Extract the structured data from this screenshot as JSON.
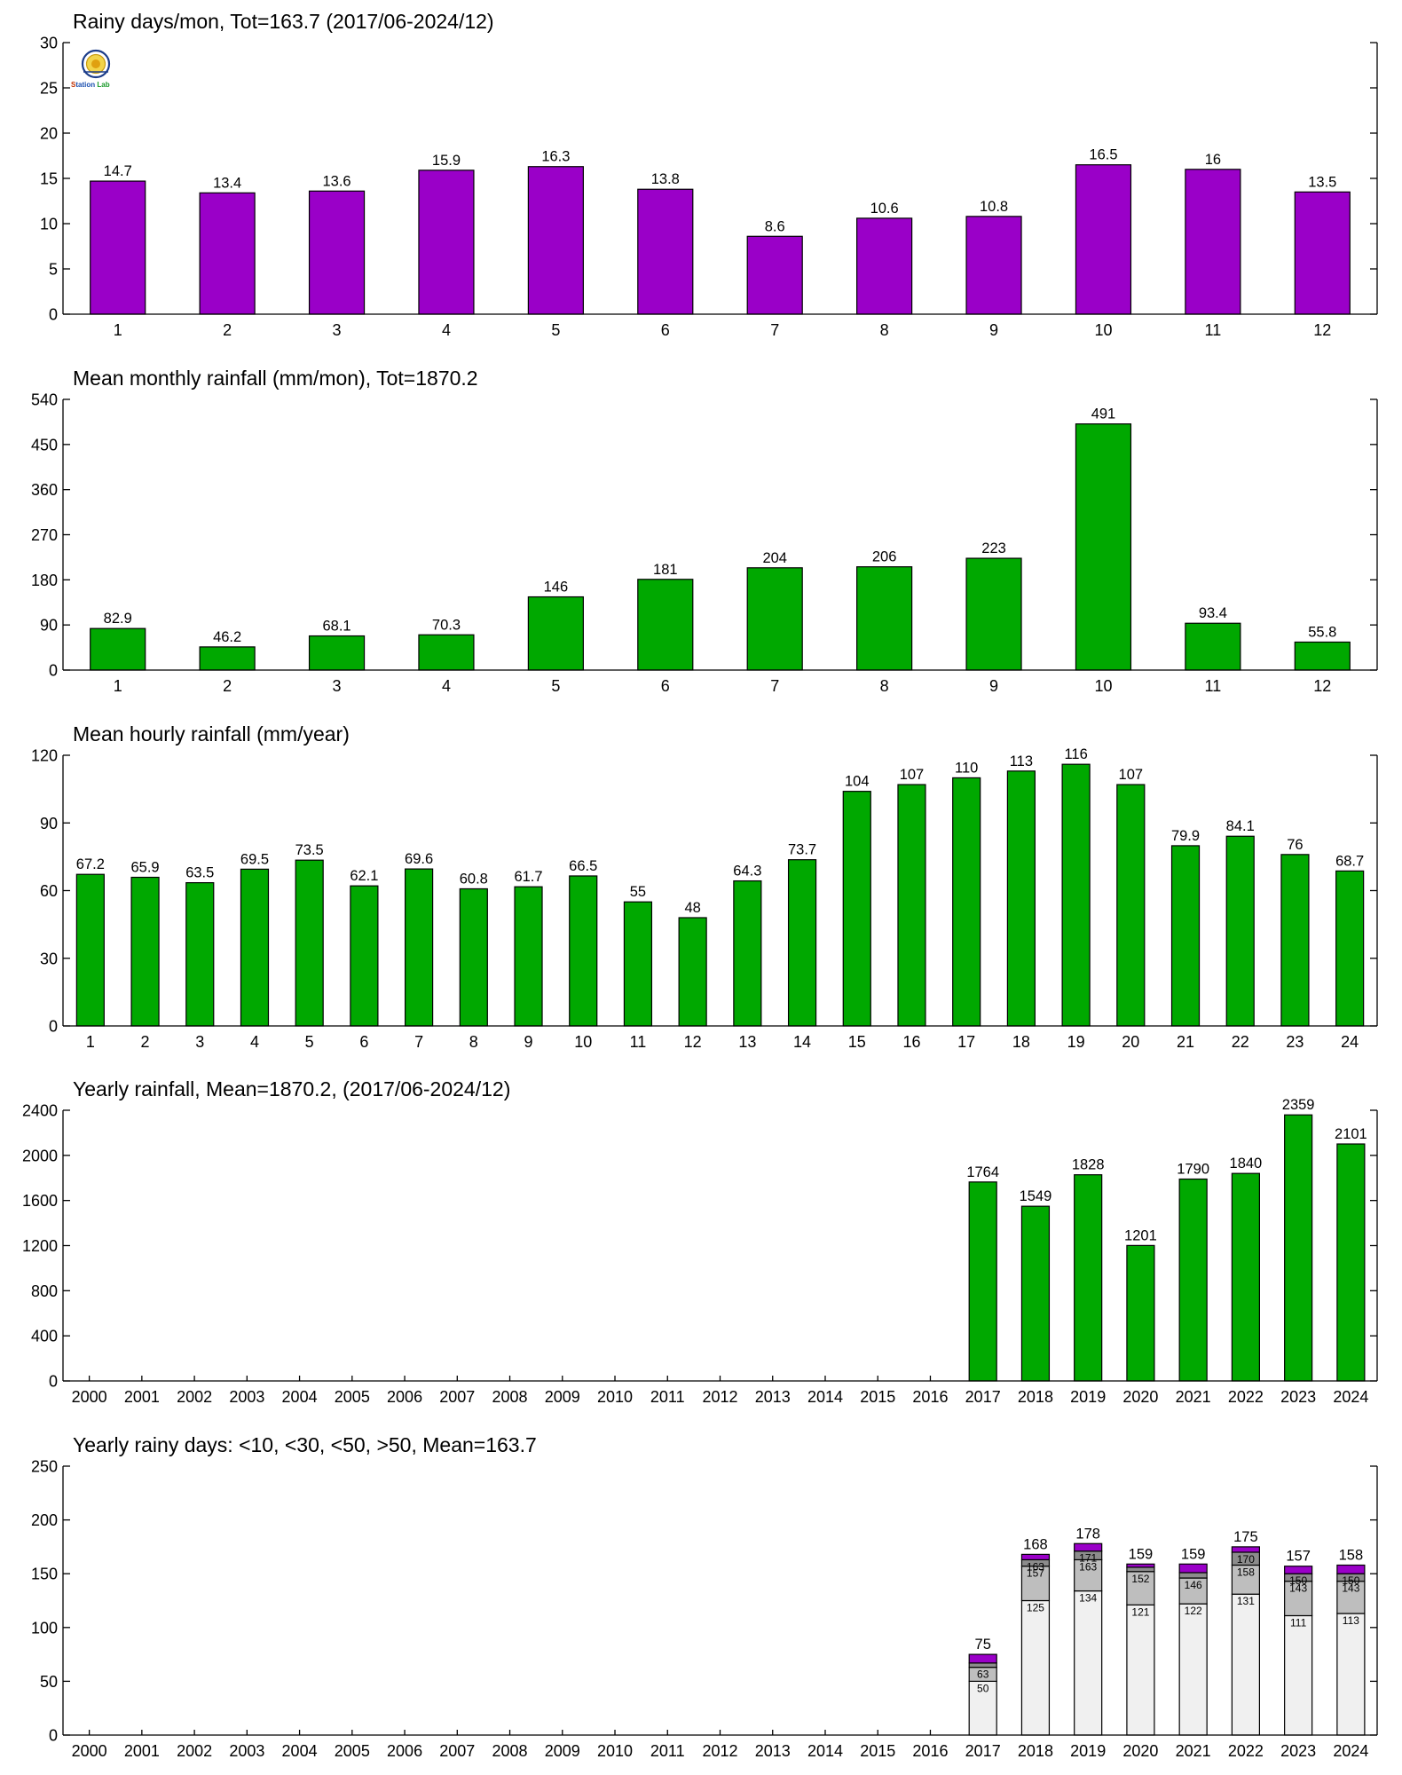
{
  "colors": {
    "purple": "#9a00c8",
    "green": "#00a800",
    "bucket_colors": [
      "#f0f0f0",
      "#bebebe",
      "#8c8c8c",
      "#9a00c8"
    ]
  },
  "logo": {
    "icon": "weather-station-logo",
    "text_parts": [
      "S",
      "tation",
      "Lab"
    ]
  },
  "chart_data": [
    {
      "type": "bar",
      "title": "Rainy days/mon, Tot=163.7 (2017/06-2024/12)",
      "categories": [
        "1",
        "2",
        "3",
        "4",
        "5",
        "6",
        "7",
        "8",
        "9",
        "10",
        "11",
        "12"
      ],
      "values": [
        14.7,
        13.4,
        13.6,
        15.9,
        16.3,
        13.8,
        8.6,
        10.6,
        10.8,
        16.5,
        16,
        13.5
      ],
      "labels": [
        "14.7",
        "13.4",
        "13.6",
        "15.9",
        "16.3",
        "13.8",
        "8.6",
        "10.6",
        "10.8",
        "16.5",
        "16",
        "13.5"
      ],
      "ylim": [
        0,
        30
      ],
      "yticks": [
        "0",
        "5",
        "10",
        "15",
        "20",
        "25",
        "30"
      ],
      "color": "#9a00c8",
      "grid": false
    },
    {
      "type": "bar",
      "title": "Mean monthly rainfall (mm/mon), Tot=1870.2",
      "categories": [
        "1",
        "2",
        "3",
        "4",
        "5",
        "6",
        "7",
        "8",
        "9",
        "10",
        "11",
        "12"
      ],
      "values": [
        82.9,
        46.2,
        68.1,
        70.3,
        146,
        181,
        204,
        206,
        223,
        491,
        93.4,
        55.8
      ],
      "labels": [
        "82.9",
        "46.2",
        "68.1",
        "70.3",
        "146",
        "181",
        "204",
        "206",
        "223",
        "491",
        "93.4",
        "55.8"
      ],
      "ylim": [
        0,
        540
      ],
      "yticks": [
        "0",
        "90",
        "180",
        "270",
        "360",
        "450",
        "540"
      ],
      "color": "#00a800",
      "grid": false
    },
    {
      "type": "bar",
      "title": "Mean hourly rainfall (mm/year)",
      "categories": [
        "1",
        "2",
        "3",
        "4",
        "5",
        "6",
        "7",
        "8",
        "9",
        "10",
        "11",
        "12",
        "13",
        "14",
        "15",
        "16",
        "17",
        "18",
        "19",
        "20",
        "21",
        "22",
        "23",
        "24"
      ],
      "values": [
        67.2,
        65.9,
        63.5,
        69.5,
        73.5,
        62.1,
        69.6,
        60.8,
        61.7,
        66.5,
        55,
        48,
        64.3,
        73.7,
        104,
        107,
        110,
        113,
        116,
        107,
        79.9,
        84.1,
        76,
        68.7
      ],
      "labels": [
        "67.2",
        "65.9",
        "63.5",
        "69.5",
        "73.5",
        "62.1",
        "69.6",
        "60.8",
        "61.7",
        "66.5",
        "55",
        "48",
        "64.3",
        "73.7",
        "104",
        "107",
        "110",
        "113",
        "116",
        "107",
        "79.9",
        "84.1",
        "76",
        "68.7"
      ],
      "ylim": [
        0,
        120
      ],
      "yticks": [
        "0",
        "30",
        "60",
        "90",
        "120"
      ],
      "color": "#00a800",
      "grid": false
    },
    {
      "type": "bar",
      "title": "Yearly rainfall, Mean=1870.2, (2017/06-2024/12)",
      "categories": [
        "2000",
        "2001",
        "2002",
        "2003",
        "2004",
        "2005",
        "2006",
        "2007",
        "2008",
        "2009",
        "2010",
        "2011",
        "2012",
        "2013",
        "2014",
        "2015",
        "2016",
        "2017",
        "2018",
        "2019",
        "2020",
        "2021",
        "2022",
        "2023",
        "2024"
      ],
      "values": [
        null,
        null,
        null,
        null,
        null,
        null,
        null,
        null,
        null,
        null,
        null,
        null,
        null,
        null,
        null,
        null,
        null,
        1764,
        1549,
        1828,
        1201,
        1790,
        1840,
        2359,
        2101
      ],
      "labels": [
        "",
        "",
        "",
        "",
        "",
        "",
        "",
        "",
        "",
        "",
        "",
        "",
        "",
        "",
        "",
        "",
        "",
        "1764",
        "1549",
        "1828",
        "1201",
        "1790",
        "1840",
        "2359",
        "2101"
      ],
      "ylim": [
        0,
        2400
      ],
      "yticks": [
        "0",
        "400",
        "800",
        "1200",
        "1600",
        "2000",
        "2400"
      ],
      "color": "#00a800",
      "grid": false
    },
    {
      "type": "stacked-bar",
      "title": "Yearly rainy days: <10, <30, <50, >50, Mean=163.7",
      "categories": [
        "2000",
        "2001",
        "2002",
        "2003",
        "2004",
        "2005",
        "2006",
        "2007",
        "2008",
        "2009",
        "2010",
        "2011",
        "2012",
        "2013",
        "2014",
        "2015",
        "2016",
        "2017",
        "2018",
        "2019",
        "2020",
        "2021",
        "2022",
        "2023",
        "2024"
      ],
      "cumulative": [
        null,
        null,
        null,
        null,
        null,
        null,
        null,
        null,
        null,
        null,
        null,
        null,
        null,
        null,
        null,
        null,
        null,
        [
          50,
          63,
          67,
          75
        ],
        [
          125,
          157,
          163,
          168
        ],
        [
          134,
          163,
          171,
          178
        ],
        [
          121,
          152,
          156,
          159
        ],
        [
          122,
          146,
          151,
          159
        ],
        [
          131,
          158,
          170,
          175
        ],
        [
          111,
          143,
          150,
          157
        ],
        [
          113,
          143,
          150,
          158
        ]
      ],
      "inner_labels": [
        null,
        null,
        null,
        null,
        null,
        null,
        null,
        null,
        null,
        null,
        null,
        null,
        null,
        null,
        null,
        null,
        null,
        [
          "50",
          "63"
        ],
        [
          "125",
          "157",
          "163"
        ],
        [
          "134",
          "163",
          "171"
        ],
        [
          "121",
          "152"
        ],
        [
          "122",
          "146"
        ],
        [
          "131",
          "158",
          "170"
        ],
        [
          "111",
          "143",
          "150"
        ],
        [
          "113",
          "143",
          "150"
        ]
      ],
      "totals": [
        "",
        "",
        "",
        "",
        "",
        "",
        "",
        "",
        "",
        "",
        "",
        "",
        "",
        "",
        "",
        "",
        "",
        "75",
        "168",
        "178",
        "159",
        "159",
        "175",
        "157",
        "158"
      ],
      "ylim": [
        0,
        250
      ],
      "yticks": [
        "0",
        "50",
        "100",
        "150",
        "200",
        "250"
      ],
      "grid": false
    }
  ]
}
